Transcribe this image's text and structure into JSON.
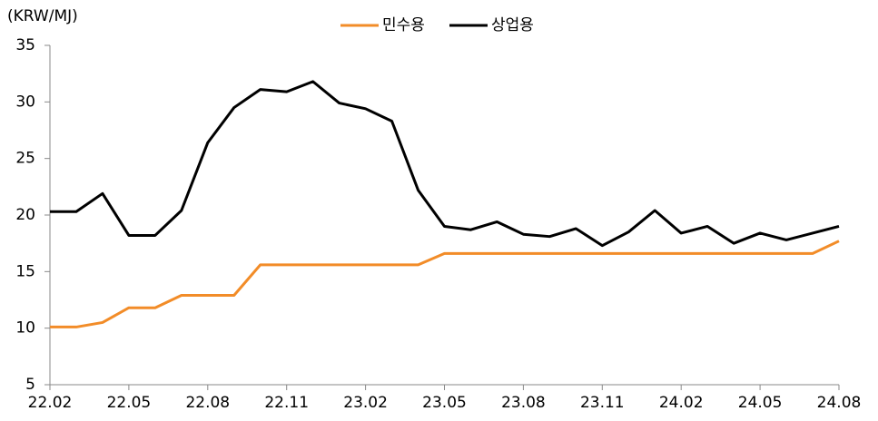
{
  "chart_data": {
    "type": "line",
    "y_label": "(KRW/MJ)",
    "categories": [
      "22.02",
      null,
      null,
      "22.05",
      null,
      null,
      "22.08",
      null,
      null,
      "22.11",
      null,
      null,
      "23.02",
      null,
      null,
      "23.05",
      null,
      null,
      "23.08",
      null,
      null,
      "23.11",
      null,
      null,
      "24.02",
      null,
      null,
      "24.05",
      null,
      null,
      "24.08"
    ],
    "series": [
      {
        "name": "민수용",
        "color": "#f28c28",
        "values": [
          10.1,
          10.1,
          10.5,
          11.8,
          11.8,
          12.9,
          12.9,
          12.9,
          15.6,
          15.6,
          15.6,
          15.6,
          15.6,
          15.6,
          15.6,
          16.6,
          16.6,
          16.6,
          16.6,
          16.6,
          16.6,
          16.6,
          16.6,
          16.6,
          16.6,
          16.6,
          16.6,
          16.6,
          16.6,
          16.6,
          17.7
        ]
      },
      {
        "name": "상업용",
        "color": "#000000",
        "values": [
          20.3,
          20.3,
          21.9,
          18.2,
          18.2,
          20.4,
          26.4,
          29.5,
          31.1,
          30.9,
          31.8,
          29.9,
          29.4,
          28.3,
          22.2,
          19.0,
          18.7,
          19.4,
          18.3,
          18.1,
          18.8,
          17.3,
          18.5,
          20.4,
          18.4,
          19.0,
          17.5,
          18.4,
          17.8,
          18.4,
          19.0
        ]
      }
    ],
    "ylim": [
      5,
      35
    ],
    "yticks": [
      5,
      10,
      15,
      20,
      25,
      30,
      35
    ],
    "legend": "top"
  }
}
